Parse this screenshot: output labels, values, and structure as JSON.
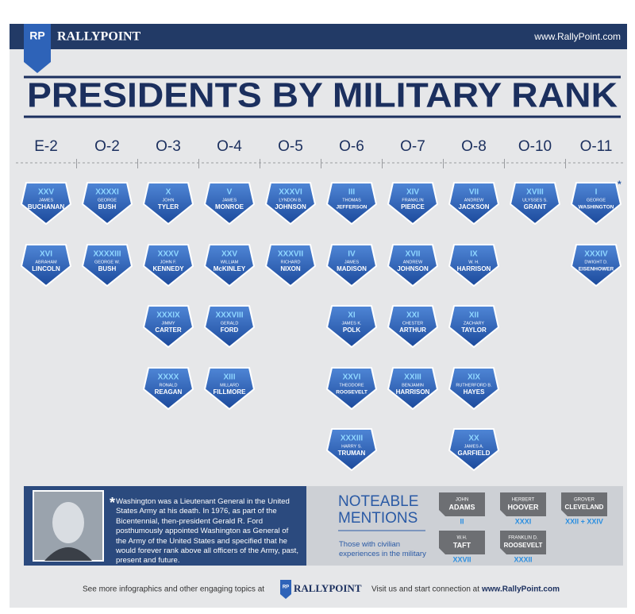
{
  "header": {
    "logo": "RP",
    "brand": "RALLYPOINT",
    "url": "www.RallyPoint.com"
  },
  "title": "PRESIDENTS BY MILITARY RANK",
  "ranks": [
    {
      "rank": "E-2",
      "presidents": [
        {
          "number": "XXV",
          "first": "JAMES",
          "last": "BUCHANAN"
        },
        {
          "number": "XVI",
          "first": "ABRAHAM",
          "last": "LINCOLN"
        }
      ]
    },
    {
      "rank": "O-2",
      "presidents": [
        {
          "number": "XXXXI",
          "first": "GEORGE",
          "last": "BUSH"
        },
        {
          "number": "XXXXIII",
          "first": "GEORGE W.",
          "last": "BUSH"
        }
      ]
    },
    {
      "rank": "O-3",
      "presidents": [
        {
          "number": "X",
          "first": "JOHN",
          "last": "TYLER"
        },
        {
          "number": "XXXV",
          "first": "JOHN F.",
          "last": "KENNEDY"
        },
        {
          "number": "XXXIX",
          "first": "JIMMY",
          "last": "CARTER"
        },
        {
          "number": "XXXX",
          "first": "RONALD",
          "last": "REAGAN"
        }
      ]
    },
    {
      "rank": "O-4",
      "presidents": [
        {
          "number": "V",
          "first": "JAMES",
          "last": "MONROE"
        },
        {
          "number": "XXV",
          "first": "WILLIAM",
          "last": "McKINLEY"
        },
        {
          "number": "XXXVIII",
          "first": "GERALD",
          "last": "FORD"
        },
        {
          "number": "XIII",
          "first": "MILLARD",
          "last": "FILLMORE"
        }
      ]
    },
    {
      "rank": "O-5",
      "presidents": [
        {
          "number": "XXXVI",
          "first": "LYNDON B.",
          "last": "JOHNSON"
        },
        {
          "number": "XXXVII",
          "first": "RICHARD",
          "last": "NIXON"
        }
      ]
    },
    {
      "rank": "O-6",
      "presidents": [
        {
          "number": "III",
          "first": "THOMAS",
          "last": "JEFFERSON"
        },
        {
          "number": "IV",
          "first": "JAMES",
          "last": "MADISON"
        },
        {
          "number": "XI",
          "first": "JAMES K.",
          "last": "POLK"
        },
        {
          "number": "XXVI",
          "first": "THEODORE",
          "last": "ROOSEVELT"
        },
        {
          "number": "XXXIII",
          "first": "HARRY S.",
          "last": "TRUMAN"
        }
      ]
    },
    {
      "rank": "O-7",
      "presidents": [
        {
          "number": "XIV",
          "first": "FRANKLIN",
          "last": "PIERCE"
        },
        {
          "number": "XVII",
          "first": "ANDREW",
          "last": "JOHNSON"
        },
        {
          "number": "XXI",
          "first": "CHESTER",
          "last": "ARTHUR"
        },
        {
          "number": "XXIII",
          "first": "BENJAMIN",
          "last": "HARRISON"
        }
      ]
    },
    {
      "rank": "O-8",
      "presidents": [
        {
          "number": "VII",
          "first": "ANDREW",
          "last": "JACKSON"
        },
        {
          "number": "IX",
          "first": "W. H.",
          "last": "HARRISON"
        },
        {
          "number": "XII",
          "first": "ZACHARY",
          "last": "TAYLOR"
        },
        {
          "number": "XIX",
          "first": "RUTHERFORD B.",
          "last": "HAYES"
        },
        {
          "number": "XX",
          "first": "JAMES A.",
          "last": "GARFIELD"
        }
      ]
    },
    {
      "rank": "O-10",
      "presidents": [
        {
          "number": "XVIII",
          "first": "ULYSSES S.",
          "last": "GRANT"
        }
      ]
    },
    {
      "rank": "O-11",
      "presidents": [
        {
          "number": "I",
          "first": "GEORGE",
          "last": "WASHINGTON",
          "mark": "*"
        },
        {
          "number": "XXXIV",
          "first": "DWIGHT D.",
          "last": "EISENHOWER"
        }
      ]
    }
  ],
  "note": {
    "mark": "*",
    "text": "Washington was a Lieutenant General in the United States Army at his death. In 1976, as part of the Bicentennial, then-president Gerald R. Ford posthumously appointed Washington as General of the Army of the United States and specified that he would forever rank above all officers of the Army, past, present and future."
  },
  "mentions": {
    "title_line1": "NOTEABLE",
    "title_line2": "MENTIONS",
    "subtitle": "Those with civilian experiences in the military",
    "items": [
      {
        "first": "JOHN",
        "last": "ADAMS",
        "number": "II"
      },
      {
        "first": "HERBERT",
        "last": "HOOVER",
        "number": "XXXI"
      },
      {
        "first": "GROVER",
        "last": "CLEVELAND",
        "number": "XXII + XXIV"
      },
      {
        "first": "W.H.",
        "last": "TAFT",
        "number": "XXVII"
      },
      {
        "first": "FRANKLIN D.",
        "last": "ROOSEVELT",
        "number": "XXXII"
      }
    ]
  },
  "footer": {
    "left": "See more infographics and other engaging topics at",
    "logo": "RP",
    "brand": "RALLYPOINT",
    "right": "Visit us and start connection at",
    "url": "www.RallyPoint.com"
  }
}
